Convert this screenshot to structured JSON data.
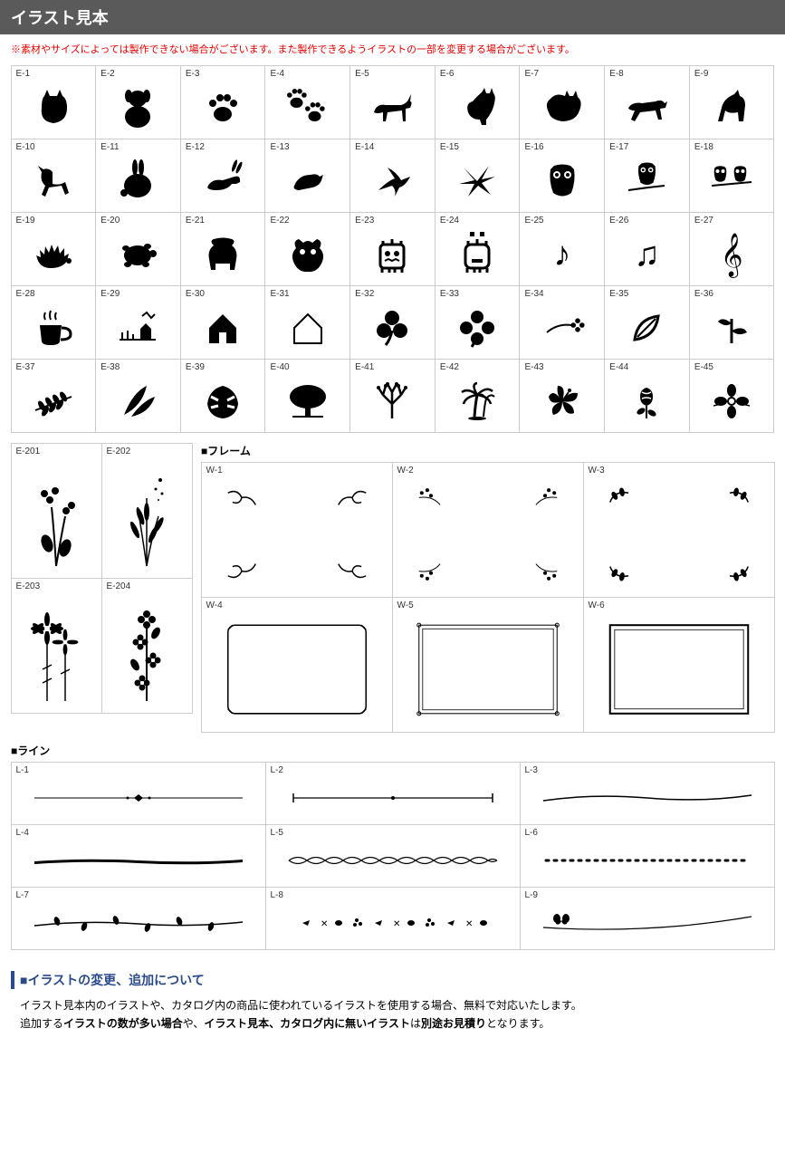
{
  "header": {
    "title": "イラスト見本"
  },
  "notice": "※素材やサイズによっては製作できない場合がございます。また製作できるようイラストの一部を変更する場合がございます。",
  "main_grid": {
    "items": [
      {
        "label": "E-1",
        "icon": "cat-sitting"
      },
      {
        "label": "E-2",
        "icon": "dog-sitting"
      },
      {
        "label": "E-3",
        "icon": "paw"
      },
      {
        "label": "E-4",
        "icon": "paw-double"
      },
      {
        "label": "E-5",
        "icon": "cat-walking"
      },
      {
        "label": "E-6",
        "icon": "cat-sit2"
      },
      {
        "label": "E-7",
        "icon": "cat-fluffy"
      },
      {
        "label": "E-8",
        "icon": "dog-running"
      },
      {
        "label": "E-9",
        "icon": "dog-sit"
      },
      {
        "label": "E-10",
        "icon": "dog-stand"
      },
      {
        "label": "E-11",
        "icon": "rabbit"
      },
      {
        "label": "E-12",
        "icon": "rabbit-run"
      },
      {
        "label": "E-13",
        "icon": "bird"
      },
      {
        "label": "E-14",
        "icon": "hummingbird"
      },
      {
        "label": "E-15",
        "icon": "bird-fly"
      },
      {
        "label": "E-16",
        "icon": "owl"
      },
      {
        "label": "E-17",
        "icon": "owl-branch"
      },
      {
        "label": "E-18",
        "icon": "owls"
      },
      {
        "label": "E-19",
        "icon": "hedgehog"
      },
      {
        "label": "E-20",
        "icon": "turtle"
      },
      {
        "label": "E-21",
        "icon": "shisa"
      },
      {
        "label": "E-22",
        "icon": "shisa-face"
      },
      {
        "label": "E-23",
        "icon": "monster"
      },
      {
        "label": "E-24",
        "icon": "monster2"
      },
      {
        "label": "E-25",
        "icon": "note"
      },
      {
        "label": "E-26",
        "icon": "notes"
      },
      {
        "label": "E-27",
        "icon": "treble"
      },
      {
        "label": "E-28",
        "icon": "coffee"
      },
      {
        "label": "E-29",
        "icon": "house-rural"
      },
      {
        "label": "E-30",
        "icon": "house"
      },
      {
        "label": "E-31",
        "icon": "house-outline"
      },
      {
        "label": "E-32",
        "icon": "clover3"
      },
      {
        "label": "E-33",
        "icon": "clover4"
      },
      {
        "label": "E-34",
        "icon": "clover-small"
      },
      {
        "label": "E-35",
        "icon": "leaf"
      },
      {
        "label": "E-36",
        "icon": "sprout"
      },
      {
        "label": "E-37",
        "icon": "branch"
      },
      {
        "label": "E-38",
        "icon": "leaves"
      },
      {
        "label": "E-39",
        "icon": "monstera"
      },
      {
        "label": "E-40",
        "icon": "tree"
      },
      {
        "label": "E-41",
        "icon": "tree-bare"
      },
      {
        "label": "E-42",
        "icon": "palm"
      },
      {
        "label": "E-43",
        "icon": "hibiscus"
      },
      {
        "label": "E-44",
        "icon": "rose"
      },
      {
        "label": "E-45",
        "icon": "flower"
      }
    ]
  },
  "tall_grid": {
    "items": [
      {
        "label": "E-201",
        "icon": "flowers-tall"
      },
      {
        "label": "E-202",
        "icon": "grass-tall"
      },
      {
        "label": "E-203",
        "icon": "cosmos-tall"
      },
      {
        "label": "E-204",
        "icon": "floral-tall"
      }
    ]
  },
  "frame_section": {
    "label": "■フレーム",
    "items": [
      {
        "label": "W-1",
        "icon": "frame-swirl"
      },
      {
        "label": "W-2",
        "icon": "frame-floral"
      },
      {
        "label": "W-3",
        "icon": "frame-leaf"
      },
      {
        "label": "W-4",
        "icon": "frame-simple"
      },
      {
        "label": "W-5",
        "icon": "frame-ornate"
      },
      {
        "label": "W-6",
        "icon": "frame-plain"
      }
    ]
  },
  "line_section": {
    "label": "■ライン",
    "items": [
      {
        "label": "L-1",
        "icon": "line-diamond"
      },
      {
        "label": "L-2",
        "icon": "line-bracket"
      },
      {
        "label": "L-3",
        "icon": "line-wave"
      },
      {
        "label": "L-4",
        "icon": "line-brush"
      },
      {
        "label": "L-5",
        "icon": "line-twist"
      },
      {
        "label": "L-6",
        "icon": "line-dots"
      },
      {
        "label": "L-7",
        "icon": "line-vine"
      },
      {
        "label": "L-8",
        "icon": "line-floral"
      },
      {
        "label": "L-9",
        "icon": "line-butterfly"
      }
    ]
  },
  "footer": {
    "heading": "■イラストの変更、追加について",
    "line1_a": "イラスト見本内のイラストや、カタログ内の商品に使われているイラストを使用する場合、無料で対応いたします。",
    "line2_a": "追加する",
    "line2_b": "イラストの数が多い場合",
    "line2_c": "や、",
    "line2_d": "イラスト見本、カタログ内に無いイラスト",
    "line2_e": "は",
    "line2_f": "別途お見積り",
    "line2_g": "となります。"
  }
}
